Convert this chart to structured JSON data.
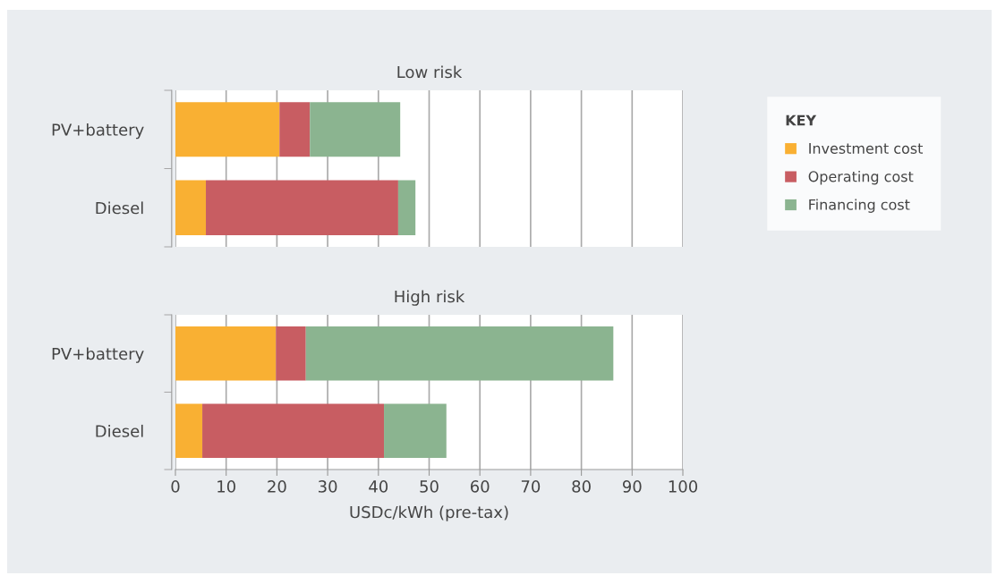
{
  "chart_data": [
    {
      "type": "bar",
      "title": "Low risk",
      "orientation": "horizontal",
      "stacked": true,
      "categories": [
        "PV+battery",
        "Diesel"
      ],
      "series": [
        {
          "name": "Investment cost",
          "color": "#f9b033",
          "values": [
            20.5,
            6.0
          ]
        },
        {
          "name": "Operating cost",
          "color": "#c85d62",
          "values": [
            6.0,
            37.9
          ]
        },
        {
          "name": "Financing cost",
          "color": "#8bb490",
          "values": [
            17.8,
            3.4
          ]
        }
      ],
      "xlim": [
        0,
        100
      ],
      "xticks": [
        0,
        10,
        20,
        30,
        40,
        50,
        60,
        70,
        80,
        90,
        100
      ],
      "grid": "x",
      "tick_labels": "y",
      "legend": "right",
      "legend_title": "KEY"
    },
    {
      "type": "bar",
      "title": "High risk",
      "orientation": "horizontal",
      "stacked": true,
      "categories": [
        "PV+battery",
        "Diesel"
      ],
      "series": [
        {
          "color": "#f9b033",
          "values": [
            19.8,
            5.3
          ]
        },
        {
          "color": "#c85d62",
          "values": [
            5.9,
            35.8
          ]
        },
        {
          "color": "#8bb490",
          "values": [
            60.6,
            12.3
          ]
        }
      ],
      "xlim": [
        0,
        100
      ],
      "xticks": [
        0,
        10,
        20,
        30,
        40,
        50,
        60,
        70,
        80,
        90,
        100
      ],
      "grid": "x",
      "xlabel": "USDc/kWh (pre-tax)"
    }
  ]
}
